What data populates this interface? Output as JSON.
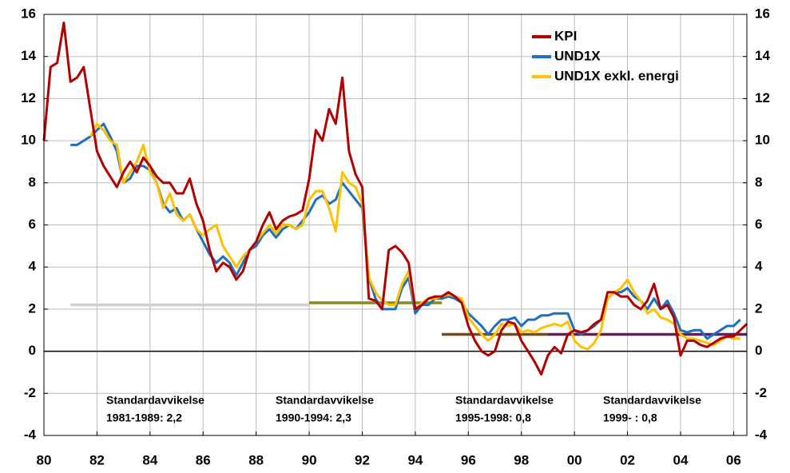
{
  "chart_data": {
    "type": "line",
    "xlim": [
      1980,
      2006.5
    ],
    "ylim": [
      -4,
      16
    ],
    "xticks": [
      {
        "value": 1980,
        "label": "80"
      },
      {
        "value": 1982,
        "label": "82"
      },
      {
        "value": 1984,
        "label": "84"
      },
      {
        "value": 1986,
        "label": "86"
      },
      {
        "value": 1988,
        "label": "88"
      },
      {
        "value": 1990,
        "label": "90"
      },
      {
        "value": 1992,
        "label": "92"
      },
      {
        "value": 1994,
        "label": "94"
      },
      {
        "value": 1996,
        "label": "96"
      },
      {
        "value": 1998,
        "label": "98"
      },
      {
        "value": 2000,
        "label": "00"
      },
      {
        "value": 2002,
        "label": "02"
      },
      {
        "value": 2004,
        "label": "04"
      },
      {
        "value": 2006,
        "label": "06"
      }
    ],
    "yticks": [
      -4,
      -2,
      0,
      2,
      4,
      6,
      8,
      10,
      12,
      14,
      16
    ],
    "grid": true,
    "legend": "top-right",
    "series": [
      {
        "name": "KPI",
        "color": "#b00000",
        "x": [
          1980,
          1980.25,
          1980.5,
          1980.75,
          1981,
          1981.25,
          1981.5,
          1981.75,
          1982,
          1982.25,
          1982.5,
          1982.75,
          1983,
          1983.25,
          1983.5,
          1983.75,
          1984,
          1984.25,
          1984.5,
          1984.75,
          1985,
          1985.25,
          1985.5,
          1985.75,
          1986,
          1986.25,
          1986.5,
          1986.75,
          1987,
          1987.25,
          1987.5,
          1987.75,
          1988,
          1988.25,
          1988.5,
          1988.75,
          1989,
          1989.25,
          1989.5,
          1989.75,
          1990,
          1990.25,
          1990.5,
          1990.75,
          1991,
          1991.25,
          1991.5,
          1991.75,
          1992,
          1992.25,
          1992.5,
          1992.75,
          1993,
          1993.25,
          1993.5,
          1993.75,
          1994,
          1994.25,
          1994.5,
          1994.75,
          1995,
          1995.25,
          1995.5,
          1995.75,
          1996,
          1996.25,
          1996.5,
          1996.75,
          1997,
          1997.25,
          1997.5,
          1997.75,
          1998,
          1998.25,
          1998.5,
          1998.75,
          1999,
          1999.25,
          1999.5,
          1999.75,
          2000,
          2000.25,
          2000.5,
          2000.75,
          2001,
          2001.25,
          2001.5,
          2001.75,
          2002,
          2002.25,
          2002.5,
          2002.75,
          2003,
          2003.25,
          2003.5,
          2003.75,
          2004,
          2004.25,
          2004.5,
          2004.75,
          2005,
          2005.25,
          2005.5,
          2005.75,
          2006,
          2006.25,
          2006.5
        ],
        "values": [
          10,
          13.5,
          13.7,
          15.6,
          12.8,
          13.0,
          13.5,
          11.5,
          9.5,
          8.8,
          8.3,
          7.8,
          8.5,
          9.0,
          8.5,
          9.2,
          8.8,
          8.3,
          8.0,
          8.0,
          7.5,
          7.5,
          8.2,
          7.0,
          6.2,
          4.8,
          3.8,
          4.2,
          4.0,
          3.4,
          3.8,
          4.8,
          5.2,
          6.0,
          6.6,
          5.8,
          6.2,
          6.4,
          6.5,
          6.7,
          8.2,
          10.5,
          10.0,
          11.5,
          10.8,
          13.0,
          9.5,
          8.4,
          7.8,
          2.5,
          2.4,
          2.0,
          4.8,
          5.0,
          4.7,
          4.2,
          2.0,
          2.2,
          2.5,
          2.6,
          2.6,
          2.8,
          2.6,
          2.3,
          1.2,
          0.5,
          0.0,
          -0.2,
          0.0,
          1.0,
          1.4,
          1.3,
          0.5,
          0.0,
          -0.5,
          -1.1,
          -0.2,
          0.2,
          -0.1,
          0.8,
          1.0,
          0.9,
          1.0,
          1.3,
          1.5,
          2.8,
          2.8,
          2.6,
          2.6,
          2.2,
          2.0,
          2.4,
          3.2,
          2.0,
          2.2,
          1.6,
          -0.2,
          0.5,
          0.5,
          0.3,
          0.2,
          0.4,
          0.6,
          0.7,
          0.7,
          1.0,
          1.3
        ]
      },
      {
        "name": "UND1X",
        "color": "#1f6fc0",
        "x": [
          1981,
          1981.25,
          1981.5,
          1981.75,
          1982,
          1982.25,
          1982.5,
          1982.75,
          1983,
          1983.25,
          1983.5,
          1983.75,
          1984,
          1984.25,
          1984.5,
          1984.75,
          1985,
          1985.25,
          1985.5,
          1985.75,
          1986,
          1986.25,
          1986.5,
          1986.75,
          1987,
          1987.25,
          1987.5,
          1987.75,
          1988,
          1988.25,
          1988.5,
          1988.75,
          1989,
          1989.25,
          1989.5,
          1989.75,
          1990,
          1990.25,
          1990.5,
          1990.75,
          1991,
          1991.25,
          1991.5,
          1991.75,
          1992,
          1992.25,
          1992.5,
          1992.75,
          1993,
          1993.25,
          1993.5,
          1993.75,
          1994,
          1994.25,
          1994.5,
          1994.75,
          1995,
          1995.25,
          1995.5,
          1995.75,
          1996,
          1996.25,
          1996.5,
          1996.75,
          1997,
          1997.25,
          1997.5,
          1997.75,
          1998,
          1998.25,
          1998.5,
          1998.75,
          1999,
          1999.25,
          1999.5,
          1999.75,
          2000,
          2000.25,
          2000.5,
          2000.75,
          2001,
          2001.25,
          2001.5,
          2001.75,
          2002,
          2002.25,
          2002.5,
          2002.75,
          2003,
          2003.25,
          2003.5,
          2003.75,
          2004,
          2004.25,
          2004.5,
          2004.75,
          2005,
          2005.25,
          2005.5,
          2005.75,
          2006,
          2006.25
        ],
        "values": [
          9.8,
          9.8,
          10.0,
          10.2,
          10.5,
          10.8,
          10.2,
          9.5,
          8.0,
          8.2,
          8.8,
          8.8,
          8.6,
          8.0,
          7.0,
          6.6,
          6.8,
          6.2,
          6.5,
          5.8,
          5.2,
          4.6,
          4.2,
          4.5,
          4.2,
          3.6,
          4.2,
          4.8,
          5.0,
          5.5,
          5.8,
          5.4,
          5.8,
          6.0,
          5.8,
          6.2,
          6.6,
          7.2,
          7.4,
          7.0,
          7.2,
          8.0,
          7.6,
          7.2,
          6.8,
          3.5,
          2.5,
          2.0,
          2.0,
          2.0,
          3.0,
          3.5,
          1.8,
          2.2,
          2.2,
          2.5,
          2.5,
          2.6,
          2.5,
          2.3,
          1.8,
          1.5,
          1.2,
          0.8,
          1.2,
          1.5,
          1.5,
          1.6,
          1.2,
          1.5,
          1.5,
          1.7,
          1.7,
          1.8,
          1.8,
          1.8,
          1.0,
          0.8,
          1.0,
          1.2,
          1.5,
          2.5,
          2.8,
          2.8,
          3.0,
          2.6,
          2.4,
          2.0,
          2.5,
          2.0,
          2.4,
          1.8,
          1.0,
          0.9,
          1.0,
          1.0,
          0.6,
          0.8,
          1.0,
          1.2,
          1.2,
          1.5
        ]
      },
      {
        "name": "UND1X exkl. energi",
        "color": "#ffc000",
        "x": [
          1981.75,
          1982,
          1982.25,
          1982.5,
          1982.75,
          1983,
          1983.25,
          1983.5,
          1983.75,
          1984,
          1984.25,
          1984.5,
          1984.75,
          1985,
          1985.25,
          1985.5,
          1985.75,
          1986,
          1986.25,
          1986.5,
          1986.75,
          1987,
          1987.25,
          1987.5,
          1987.75,
          1988,
          1988.25,
          1988.5,
          1988.75,
          1989,
          1989.25,
          1989.5,
          1989.75,
          1990,
          1990.25,
          1990.5,
          1990.75,
          1991,
          1991.25,
          1991.5,
          1991.75,
          1992,
          1992.25,
          1992.5,
          1992.75,
          1993,
          1993.25,
          1993.5,
          1993.75,
          1994,
          1994.25,
          1994.5,
          1994.75,
          1995,
          1995.25,
          1995.5,
          1995.75,
          1996,
          1996.25,
          1996.5,
          1996.75,
          1997,
          1997.25,
          1997.5,
          1997.75,
          1998,
          1998.25,
          1998.5,
          1998.75,
          1999,
          1999.25,
          1999.5,
          1999.75,
          2000,
          2000.25,
          2000.5,
          2000.75,
          2001,
          2001.25,
          2001.5,
          2001.75,
          2002,
          2002.25,
          2002.5,
          2002.75,
          2003,
          2003.25,
          2003.5,
          2003.75,
          2004,
          2004.25,
          2004.5,
          2004.75,
          2005,
          2005.25,
          2005.5,
          2005.75,
          2006,
          2006.25
        ],
        "values": [
          10.2,
          10.8,
          10.5,
          10.0,
          9.8,
          8.0,
          8.5,
          9.0,
          9.8,
          8.5,
          8.0,
          6.8,
          7.5,
          6.5,
          6.2,
          6.5,
          5.8,
          5.5,
          5.8,
          6.0,
          5.0,
          4.5,
          4.0,
          4.5,
          4.8,
          5.2,
          5.6,
          6.0,
          5.6,
          6.0,
          6.0,
          5.8,
          6.0,
          7.2,
          7.6,
          7.6,
          6.8,
          5.7,
          8.5,
          8.0,
          7.8,
          7.0,
          3.5,
          2.8,
          2.4,
          2.2,
          2.2,
          3.2,
          3.8,
          2.0,
          2.3,
          2.5,
          2.5,
          2.6,
          2.7,
          2.6,
          2.5,
          1.6,
          1.2,
          0.8,
          0.5,
          0.8,
          1.3,
          1.2,
          1.3,
          0.9,
          1.0,
          0.9,
          1.1,
          1.2,
          1.3,
          1.2,
          1.4,
          0.5,
          0.2,
          0.1,
          0.4,
          1.0,
          2.5,
          2.8,
          3.0,
          3.4,
          2.8,
          2.4,
          1.8,
          2.0,
          1.6,
          1.5,
          1.3,
          0.8,
          0.6,
          0.6,
          0.5,
          0.4,
          0.3,
          0.5,
          0.7,
          0.6,
          0.6
        ]
      }
    ],
    "reference_lines": [
      {
        "x": [
          1981,
          1990
        ],
        "y": 2.2,
        "color": "#d0d0d0"
      },
      {
        "x": [
          1990,
          1995
        ],
        "y": 2.3,
        "color": "#8a8a1a"
      },
      {
        "x": [
          1995,
          1999
        ],
        "y": 0.8,
        "color": "#7a4a10"
      },
      {
        "x": [
          1999,
          2006.5
        ],
        "y": 0.8,
        "color": "#6a1a5a"
      }
    ],
    "annotations": [
      [
        "Standardavvikelse",
        "1981-1989: 2,2"
      ],
      [
        "Standardavvikelse",
        "1990-1994: 2,3"
      ],
      [
        "Standardavvikelse",
        "1995-1998: 0,8"
      ],
      [
        "Standardavvikelse",
        "1999- : 0,8"
      ]
    ]
  }
}
